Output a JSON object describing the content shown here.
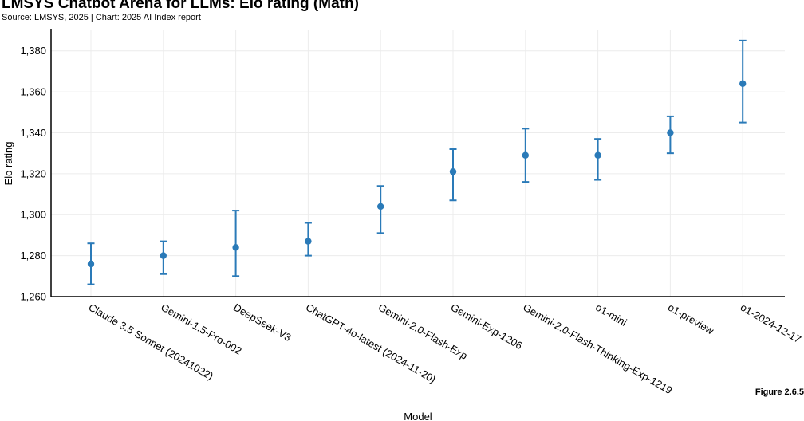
{
  "title": "LMSYS Chatbot Arena for LLMs: Elo rating (Math)",
  "subtitle": "Source: LMSYS, 2025 | Chart: 2025 AI Index report",
  "figure_label": "Figure 2.6.5",
  "colors": {
    "series": "#2a7ab8",
    "grid": "#ececec",
    "axis": "#000000"
  },
  "chart_data": {
    "type": "scatter",
    "error_bars": true,
    "title": "LMSYS Chatbot Arena for LLMs: Elo rating (Math)",
    "xlabel": "Model",
    "ylabel": "Elo rating",
    "ylim": [
      1260,
      1390
    ],
    "yticks": [
      1260,
      1280,
      1300,
      1320,
      1340,
      1360,
      1380
    ],
    "ytick_labels": [
      "1,260",
      "1,280",
      "1,300",
      "1,320",
      "1,340",
      "1,360",
      "1,380"
    ],
    "grid": true,
    "categories": [
      "Claude 3.5 Sonnet (20241022)",
      "Gemini-1.5-Pro-002",
      "DeepSeek-V3",
      "ChatGPT-4o-latest (2024-11-20)",
      "Gemini-2.0-Flash-Exp",
      "Gemini-Exp-1206",
      "Gemini-2.0-Flash-Thinking-Exp-1219",
      "o1-mini",
      "o1-preview",
      "o1-2024-12-17"
    ],
    "values": [
      1276,
      1280,
      1284,
      1287,
      1304,
      1321,
      1329,
      1329,
      1340,
      1364
    ],
    "lower": [
      1266,
      1271,
      1270,
      1280,
      1291,
      1307,
      1316,
      1317,
      1330,
      1345
    ],
    "upper": [
      1286,
      1287,
      1302,
      1296,
      1314,
      1332,
      1342,
      1337,
      1348,
      1385
    ]
  }
}
